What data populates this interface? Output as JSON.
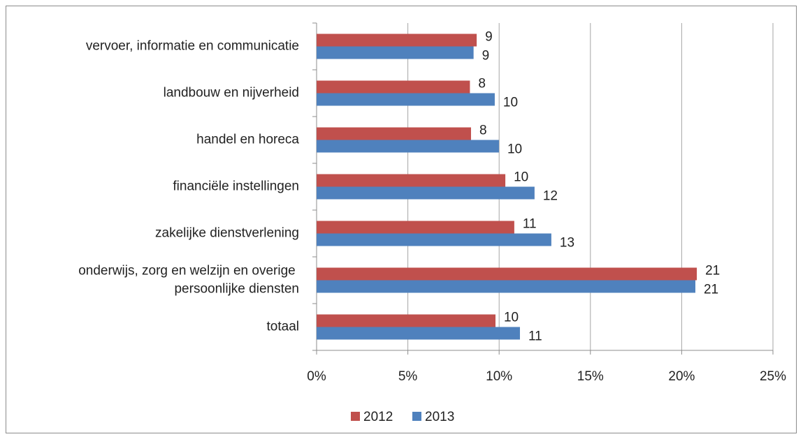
{
  "chart_data": {
    "type": "bar",
    "orientation": "horizontal",
    "categories": [
      "vervoer, informatie en communicatie",
      "landbouw en nijverheid",
      "handel en horeca",
      "financiële instellingen",
      "zakelijke dienstverlening",
      "onderwijs, zorg en welzijn en overige persoonlijke diensten",
      "totaal"
    ],
    "series": [
      {
        "name": "2012",
        "color": "#c0504d",
        "values": [
          8.77,
          8.4,
          8.46,
          10.34,
          10.83,
          20.83,
          9.8
        ],
        "value_labels": [
          "9",
          "8",
          "8",
          "10",
          "11",
          "21",
          "10"
        ]
      },
      {
        "name": "2013",
        "color": "#4f81bd",
        "values": [
          8.6,
          9.76,
          9.99,
          11.94,
          12.86,
          20.75,
          11.14
        ],
        "value_labels": [
          "9",
          "10",
          "10",
          "12",
          "13",
          "21",
          "11"
        ]
      }
    ],
    "xlim": [
      0,
      25
    ],
    "xticks": [
      {
        "value": 0,
        "label": "0%"
      },
      {
        "value": 5,
        "label": "5%"
      },
      {
        "value": 10,
        "label": "10%"
      },
      {
        "value": 15,
        "label": "15%"
      },
      {
        "value": 20,
        "label": "20%"
      },
      {
        "value": 25,
        "label": "25%"
      }
    ],
    "grid": true,
    "legend": "bottom"
  }
}
